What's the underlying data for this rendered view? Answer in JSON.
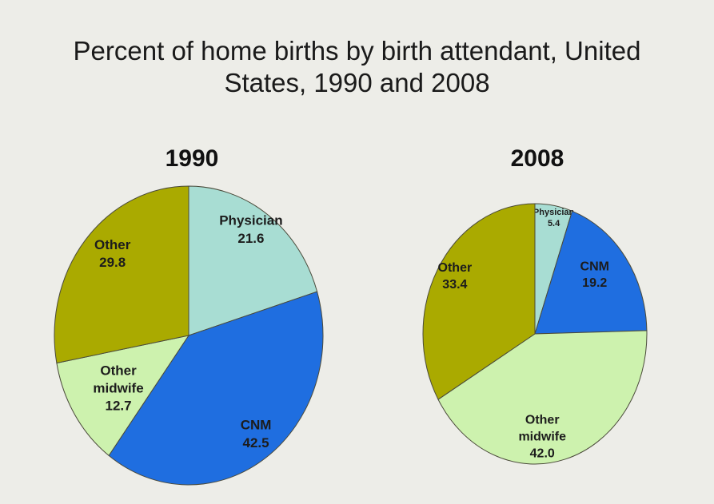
{
  "title_line1": "Percent of home births by birth attendant, United",
  "title_line2": "States, 1990 and 2008",
  "chart_data": [
    {
      "type": "pie",
      "title": "1990",
      "slices": [
        {
          "label": "Physician",
          "value": 21.6,
          "value_text": "21.6",
          "color": "#a8ddd3"
        },
        {
          "label": "CNM",
          "value": 42.5,
          "value_text": "42.5",
          "color": "#1f6ee0"
        },
        {
          "label": "Other midwife",
          "value": 12.7,
          "value_text": "12.7",
          "color": "#cdf2ae"
        },
        {
          "label": "Other",
          "value": 29.8,
          "value_text": "29.8",
          "color": "#aaaa00"
        }
      ]
    },
    {
      "type": "pie",
      "title": "2008",
      "slices": [
        {
          "label": "Physician",
          "value": 5.4,
          "value_text": "5.4",
          "color": "#a8ddd3"
        },
        {
          "label": "CNM",
          "value": 19.2,
          "value_text": "19.2",
          "color": "#1f6ee0"
        },
        {
          "label": "Other midwife",
          "value": 42.0,
          "value_text": "42.0",
          "color": "#cdf2ae"
        },
        {
          "label": "Other",
          "value": 33.4,
          "value_text": "33.4",
          "color": "#aaaa00"
        }
      ]
    }
  ]
}
